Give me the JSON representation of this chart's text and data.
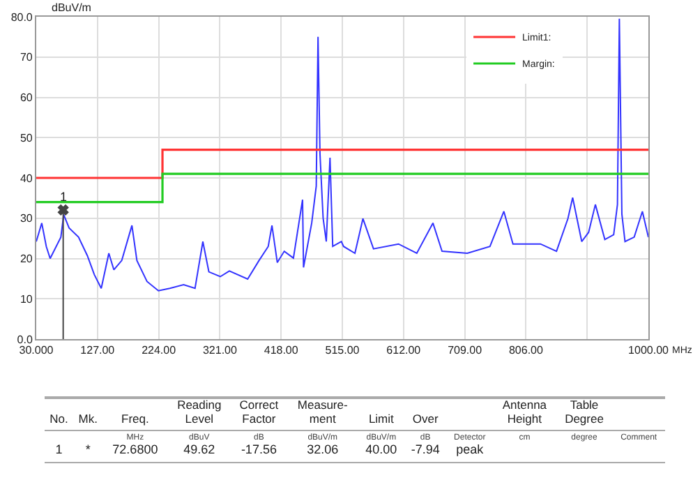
{
  "chart_data": {
    "type": "line",
    "xlabel": "MHz",
    "ylabel": "dBuV/m",
    "xlim": [
      30,
      1000
    ],
    "ylim": [
      0,
      80
    ],
    "xticks": [
      {
        "value": 30,
        "label": "30.000"
      },
      {
        "value": 127,
        "label": "127.00"
      },
      {
        "value": 224,
        "label": "224.00"
      },
      {
        "value": 321,
        "label": "321.00"
      },
      {
        "value": 418,
        "label": "418.00"
      },
      {
        "value": 515,
        "label": "515.00"
      },
      {
        "value": 612,
        "label": "612.00"
      },
      {
        "value": 709,
        "label": "709.00"
      },
      {
        "value": 806,
        "label": "806.00"
      },
      {
        "value": 903,
        "label": null
      },
      {
        "value": 1000,
        "label": "1000.00"
      }
    ],
    "yticks": [
      {
        "value": 0,
        "label": "0.0"
      },
      10,
      20,
      30,
      40,
      50,
      60,
      70,
      {
        "value": 80,
        "label": "80.0"
      }
    ],
    "grid": true,
    "legend": "top right",
    "marker": "none",
    "line_style": "solid",
    "series": [
      {
        "color": "#3333ff",
        "x": [
          30,
          38.7,
          45.9,
          52,
          69,
          73.5,
          82,
          97,
          111,
          122,
          133,
          145,
          153,
          165.5,
          181.6,
          189.5,
          205.5,
          223.6,
          241.7,
          263.5,
          281.6,
          294,
          303.5,
          321.6,
          336,
          365,
          383,
          397.6,
          403.5,
          412,
          423,
          437.5,
          452,
          453.5,
          466.5,
          473.7,
          476.5,
          479.6,
          484.6,
          489.6,
          495.5,
          499.8,
          513.5,
          517,
          535,
          547.7,
          564.4,
          604,
          633,
          658.6,
          673,
          713,
          749,
          771,
          785.4,
          829,
          854.4,
          872.5,
          880,
          894.4,
          905.3,
          916,
          931,
          945,
          951,
          954,
          958,
          963,
          977.5,
          990.5,
          1000
        ],
        "values": [
          24.2,
          28.8,
          23,
          20,
          25.3,
          30.9,
          27.6,
          25.3,
          20.7,
          16,
          12.6,
          21.3,
          17.2,
          19.5,
          28.2,
          19.5,
          14.3,
          12,
          12.6,
          13.5,
          12.6,
          24.2,
          16.7,
          15.5,
          16.9,
          14.9,
          19.5,
          23,
          28.2,
          19,
          21.8,
          20.1,
          34.6,
          17.8,
          28.8,
          38,
          75,
          46,
          30,
          24.2,
          45,
          23,
          24.2,
          23,
          21.3,
          29.9,
          22.4,
          23.6,
          21.3,
          28.8,
          21.8,
          21.3,
          23,
          31.7,
          23.6,
          23.6,
          21.8,
          29.9,
          35.1,
          24.2,
          26.5,
          33.4,
          24.7,
          25.9,
          33.4,
          79.5,
          31,
          24.2,
          25.3,
          31.7,
          25.3
        ]
      },
      {
        "type": "step",
        "name": "Limit1:",
        "color": "#ff3333",
        "x": [
          30,
          230,
          1000
        ],
        "values": [
          40,
          47,
          47
        ]
      },
      {
        "type": "step",
        "name": "Margin:",
        "color": "#22cc22",
        "x": [
          30,
          230,
          1000
        ],
        "values": [
          34,
          41,
          41
        ]
      },
      {
        "type": "scatter",
        "marker": "cross",
        "color": "#444444",
        "x": [
          72.68
        ],
        "values": [
          32.06
        ]
      }
    ],
    "annotations": [
      {
        "text": "1",
        "x": 72.68,
        "y": 32.06
      },
      "No.",
      "Mk.",
      "Freq.",
      "Reading\nLevel",
      "Correct\nFactor",
      "Measure-\nment",
      "Limit",
      "Over",
      "Antenna\nHeight",
      "Table\nDegree",
      "MHz",
      "dBuV",
      "dB",
      "dBuV/m",
      "dBuV/m",
      "dB",
      "Detector",
      "cm",
      "degree",
      "Comment",
      "1",
      "*",
      "72.6800",
      "49.62",
      "-17.56",
      "32.06",
      "40.00",
      "-7.94",
      "peak"
    ]
  }
}
